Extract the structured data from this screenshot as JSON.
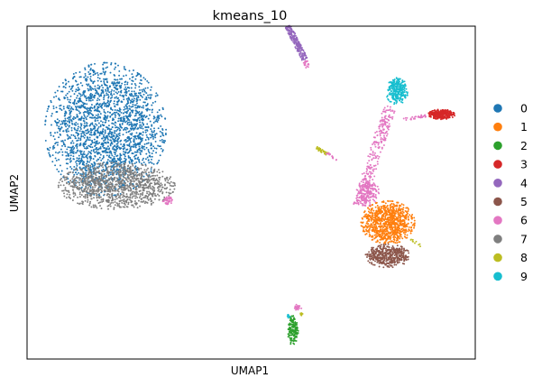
{
  "chart_data": {
    "type": "scatter",
    "title": "kmeans_10",
    "xlabel": "UMAP1",
    "ylabel": "UMAP2",
    "xlim": [
      0,
      100
    ],
    "ylim": [
      0,
      100
    ],
    "grid": false,
    "ticks": false,
    "legend_position": "right",
    "legend": [
      {
        "label": "0",
        "color": "#1f77b4"
      },
      {
        "label": "1",
        "color": "#ff7f0e"
      },
      {
        "label": "2",
        "color": "#2ca02c"
      },
      {
        "label": "3",
        "color": "#d62728"
      },
      {
        "label": "4",
        "color": "#9467bd"
      },
      {
        "label": "5",
        "color": "#8c564b"
      },
      {
        "label": "6",
        "color": "#e377c2"
      },
      {
        "label": "7",
        "color": "#7f7f7f"
      },
      {
        "label": "8",
        "color": "#bcbd22"
      },
      {
        "label": "9",
        "color": "#17becf"
      }
    ],
    "clusters": [
      {
        "label": "0",
        "shape": "ellipse",
        "cx": 17.5,
        "cy": 69,
        "rx": 13.5,
        "ry": 20,
        "count": 2200
      },
      {
        "label": "7",
        "shape": "ellipse",
        "cx": 20,
        "cy": 52,
        "rx": 13,
        "ry": 7,
        "count": 1100
      },
      {
        "label": "6",
        "shape": "ellipse",
        "cx": 31.5,
        "cy": 47.5,
        "rx": 1.2,
        "ry": 1.5,
        "count": 40
      },
      {
        "label": "4",
        "shape": "line",
        "x1": 58.2,
        "y1": 100,
        "x2": 62,
        "y2": 90,
        "w": 0.7,
        "count": 200
      },
      {
        "label": "6",
        "shape": "ellipse",
        "cx": 62.3,
        "cy": 88.5,
        "rx": 0.7,
        "ry": 1.2,
        "count": 20
      },
      {
        "label": "8",
        "shape": "line",
        "x1": 64.5,
        "y1": 63.5,
        "x2": 67,
        "y2": 61.5,
        "w": 0.4,
        "count": 40
      },
      {
        "label": "6",
        "shape": "line",
        "x1": 67,
        "y1": 62,
        "x2": 69,
        "y2": 59.5,
        "w": 0.4,
        "count": 15
      },
      {
        "label": "2",
        "shape": "ellipse",
        "cx": 59.3,
        "cy": 8.5,
        "rx": 1.2,
        "ry": 4.5,
        "count": 160
      },
      {
        "label": "6",
        "shape": "ellipse",
        "cx": 60.5,
        "cy": 15.5,
        "rx": 0.8,
        "ry": 1,
        "count": 25
      },
      {
        "label": "9",
        "shape": "ellipse",
        "cx": 58.4,
        "cy": 13,
        "rx": 0.5,
        "ry": 0.7,
        "count": 10
      },
      {
        "label": "8",
        "shape": "ellipse",
        "cx": 61.2,
        "cy": 13.5,
        "rx": 0.5,
        "ry": 0.5,
        "count": 8
      },
      {
        "label": "6",
        "shape": "line",
        "x1": 74,
        "y1": 46,
        "x2": 81,
        "y2": 76,
        "w": 1.4,
        "count": 280
      },
      {
        "label": "6",
        "shape": "ellipse",
        "cx": 76,
        "cy": 50,
        "rx": 2.5,
        "ry": 4,
        "count": 180
      },
      {
        "label": "1",
        "shape": "ellipse",
        "cx": 80.5,
        "cy": 41,
        "rx": 6,
        "ry": 6.5,
        "count": 900
      },
      {
        "label": "5",
        "shape": "ellipse",
        "cx": 80.5,
        "cy": 31,
        "rx": 5,
        "ry": 3.5,
        "count": 450
      },
      {
        "label": "9",
        "shape": "ellipse",
        "cx": 82.5,
        "cy": 80.5,
        "rx": 2.5,
        "ry": 4,
        "count": 260
      },
      {
        "label": "3",
        "shape": "ellipse",
        "cx": 92.5,
        "cy": 73.5,
        "rx": 3,
        "ry": 1.5,
        "count": 300
      },
      {
        "label": "6",
        "shape": "line",
        "x1": 84,
        "y1": 72,
        "x2": 89,
        "y2": 73,
        "w": 0.5,
        "count": 30
      },
      {
        "label": "8",
        "shape": "line",
        "x1": 85.5,
        "y1": 36,
        "x2": 88,
        "y2": 34,
        "w": 0.3,
        "count": 10
      }
    ]
  }
}
